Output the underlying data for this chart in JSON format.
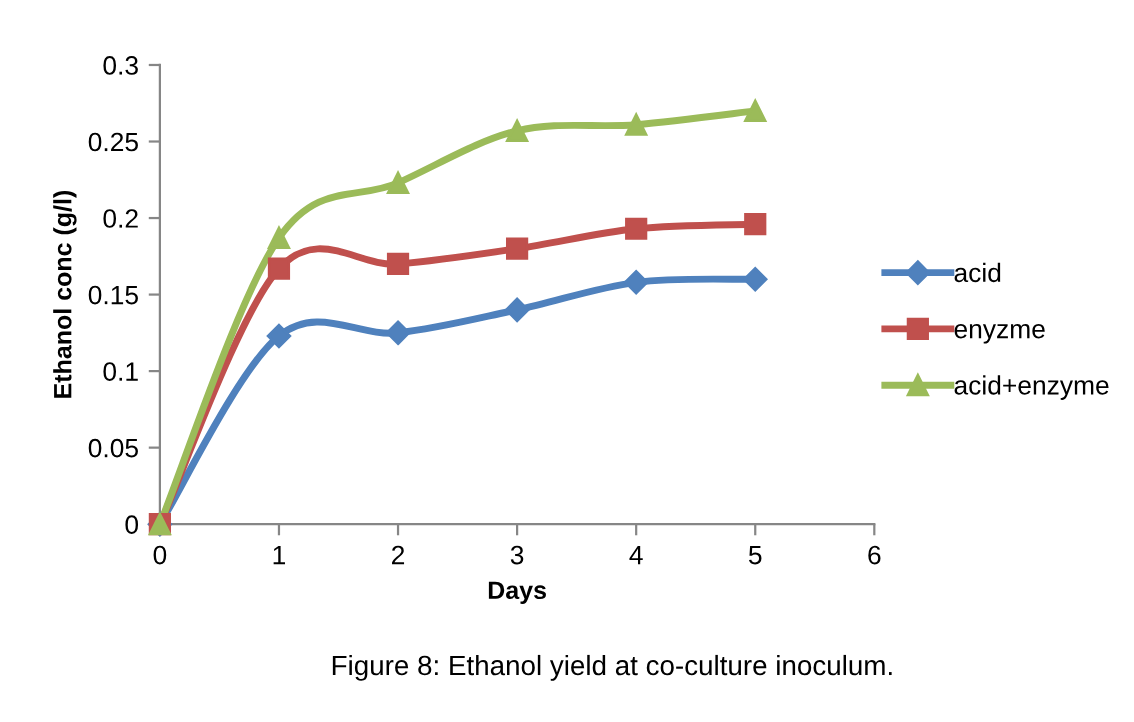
{
  "chart_data": {
    "type": "line",
    "xlabel": "Days",
    "ylabel": "Ethanol conc (g/l)",
    "x": [
      0,
      1,
      2,
      3,
      4,
      5
    ],
    "series": [
      {
        "name": "acid",
        "color": "#4f81bd",
        "marker": "diamond",
        "values": [
          0,
          0.123,
          0.125,
          0.14,
          0.158,
          0.16
        ]
      },
      {
        "name": "enyzme",
        "color": "#c0504d",
        "marker": "square",
        "values": [
          0,
          0.167,
          0.17,
          0.18,
          0.193,
          0.196
        ]
      },
      {
        "name": "acid+enzyme",
        "color": "#9bbb59",
        "marker": "triangle",
        "values": [
          0,
          0.187,
          0.223,
          0.257,
          0.261,
          0.27
        ]
      }
    ],
    "xlim": [
      0,
      6
    ],
    "xticks": [
      0,
      1,
      2,
      3,
      4,
      5,
      6
    ],
    "ylim": [
      0,
      0.3
    ],
    "yticks": [
      0,
      0.05,
      0.1,
      0.15,
      0.2,
      0.25,
      0.3
    ],
    "grid": false,
    "legend": "right",
    "line_style": "solid",
    "annotations": [
      "Figure 8: Ethanol yield at co-culture inoculum."
    ]
  }
}
